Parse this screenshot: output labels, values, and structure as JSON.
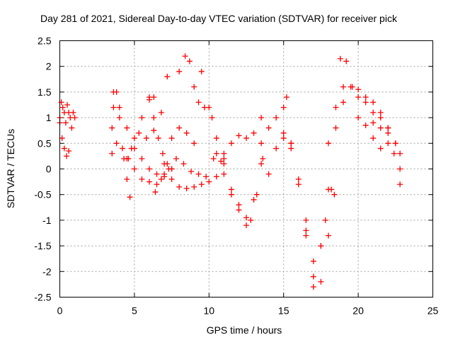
{
  "chart_data": {
    "type": "scatter",
    "title": "Day 281 of 2021, Sidereal Day-to-day VTEC variation (SDTVAR) for receiver pick",
    "xlabel": "GPS time / hours",
    "ylabel": "SDTVAR / TECUs",
    "xlim": [
      0,
      25
    ],
    "ylim": [
      -2.5,
      2.5
    ],
    "xticks": [
      0,
      5,
      10,
      15,
      20,
      25
    ],
    "yticks": [
      -2.5,
      -2,
      -1.5,
      -1,
      -0.5,
      0,
      0.5,
      1,
      1.5,
      2,
      2.5
    ],
    "xtick_labels": [
      "0",
      "5",
      "10",
      "15",
      "20",
      "25"
    ],
    "ytick_labels": [
      "-2.5",
      "-2",
      "-1.5",
      "-1",
      "-0.5",
      "0",
      "0.5",
      "1",
      "1.5",
      "2",
      "2.5"
    ],
    "grid": true,
    "marker": "+",
    "marker_color": "#ff0000",
    "series": [
      {
        "name": "s1",
        "x": [
          0.0,
          0.2,
          0.4,
          0.6,
          0.8,
          1.0
        ],
        "y": [
          1.0,
          1.2,
          0.9,
          1.1,
          0.8,
          1.0
        ]
      },
      {
        "name": "s2",
        "x": [
          0.0,
          0.15,
          0.3,
          0.45,
          0.6
        ],
        "y": [
          0.9,
          0.6,
          0.4,
          0.25,
          0.35
        ]
      },
      {
        "name": "s3",
        "x": [
          0.1,
          0.3,
          0.5,
          0.7,
          0.9
        ],
        "y": [
          1.3,
          1.1,
          1.25,
          1.0,
          1.1
        ]
      },
      {
        "name": "s4",
        "x": [
          3.5,
          3.6,
          3.8,
          4.0,
          4.3,
          4.5,
          4.7
        ],
        "y": [
          0.8,
          1.2,
          1.5,
          1.0,
          0.2,
          -0.2,
          -0.55
        ]
      },
      {
        "name": "s5",
        "x": [
          3.5,
          3.8,
          4.2,
          4.6,
          5.0,
          5.5,
          6.0,
          6.5,
          7.0,
          7.5
        ],
        "y": [
          0.3,
          0.5,
          0.4,
          0.2,
          0.0,
          -0.2,
          -0.25,
          -0.3,
          -0.15,
          0.0
        ]
      },
      {
        "name": "s6",
        "x": [
          3.6,
          4.0,
          4.5,
          5.0,
          5.5,
          6.0,
          6.4
        ],
        "y": [
          1.5,
          1.2,
          0.8,
          0.4,
          0.2,
          0.0,
          -0.45
        ]
      },
      {
        "name": "s7",
        "x": [
          4.5,
          5.0,
          5.5,
          6.0,
          6.3
        ],
        "y": [
          0.2,
          0.6,
          1.0,
          1.35,
          1.4
        ]
      },
      {
        "name": "s8",
        "x": [
          4.8,
          5.3,
          5.8,
          6.3,
          6.8,
          7.2
        ],
        "y": [
          0.4,
          0.7,
          0.6,
          0.75,
          1.1,
          1.8
        ]
      },
      {
        "name": "s9",
        "x": [
          6.0,
          6.3,
          6.6,
          6.9,
          7.2,
          7.5
        ],
        "y": [
          1.4,
          1.0,
          0.6,
          0.3,
          0.1,
          0.0
        ]
      },
      {
        "name": "s10",
        "x": [
          6.5,
          7.0,
          7.5,
          8.0,
          8.5,
          9.0
        ],
        "y": [
          -0.1,
          0.1,
          0.6,
          0.8,
          0.7,
          0.5
        ]
      },
      {
        "name": "s11",
        "x": [
          7.0,
          7.5,
          8.0,
          8.5,
          9.0,
          9.5,
          10.0,
          10.5,
          11.0
        ],
        "y": [
          -0.1,
          -0.2,
          -0.35,
          -0.38,
          -0.35,
          -0.3,
          -0.25,
          -0.15,
          0.1
        ]
      },
      {
        "name": "s12",
        "x": [
          8.0,
          8.4,
          8.7,
          9.0,
          9.3,
          9.7,
          10.2
        ],
        "y": [
          1.9,
          2.2,
          2.1,
          1.6,
          1.3,
          1.2,
          1.0
        ]
      },
      {
        "name": "s13",
        "x": [
          6.8,
          7.3,
          7.8,
          8.3,
          8.8,
          9.3,
          9.8,
          10.3,
          10.8
        ],
        "y": [
          -0.2,
          0.0,
          0.2,
          0.1,
          -0.05,
          -0.1,
          -0.15,
          0.2,
          0.15
        ]
      },
      {
        "name": "s14",
        "x": [
          9.5,
          10.0,
          10.5,
          11.0,
          11.5,
          12.0,
          12.5,
          13.0,
          13.5
        ],
        "y": [
          1.9,
          1.2,
          0.6,
          0.3,
          0.5,
          0.65,
          0.6,
          0.7,
          1.0
        ]
      },
      {
        "name": "s15",
        "x": [
          10.5,
          11.0,
          11.5,
          12.0,
          12.5,
          13.0,
          13.5
        ],
        "y": [
          0.3,
          -0.1,
          -0.5,
          -0.8,
          -1.1,
          -0.6,
          0.1
        ]
      },
      {
        "name": "s16",
        "x": [
          11.0,
          11.5,
          12.0,
          12.5,
          12.8,
          13.2,
          13.6
        ],
        "y": [
          0.2,
          -0.4,
          -0.7,
          -0.95,
          -1.0,
          -0.5,
          0.2
        ]
      },
      {
        "name": "s17",
        "x": [
          13.5,
          14.0,
          14.5,
          15.0,
          15.5
        ],
        "y": [
          0.5,
          0.8,
          1.0,
          0.7,
          0.4
        ]
      },
      {
        "name": "s18",
        "x": [
          14.0,
          14.5,
          15.0,
          15.2,
          15.5
        ],
        "y": [
          -0.1,
          0.4,
          1.2,
          1.4,
          0.5
        ]
      },
      {
        "name": "s19",
        "x": [
          15.0,
          15.5,
          16.0,
          16.5,
          17.0,
          17.5,
          18.0,
          18.5,
          19.0
        ],
        "y": [
          0.6,
          0.5,
          -0.2,
          -1.2,
          -2.3,
          -1.5,
          -0.4,
          0.8,
          1.6
        ]
      },
      {
        "name": "s20",
        "x": [
          16.0,
          16.5,
          17.0,
          17.5,
          18.0,
          18.4
        ],
        "y": [
          -0.3,
          -1.3,
          -2.1,
          -2.2,
          -1.3,
          -0.5
        ]
      },
      {
        "name": "s21",
        "x": [
          16.5,
          17.0,
          17.5,
          17.8,
          18.2
        ],
        "y": [
          -1.0,
          -1.8,
          -1.5,
          -1.0,
          -0.4
        ]
      },
      {
        "name": "s22",
        "x": [
          18.0,
          18.5,
          18.8,
          19.2,
          19.6,
          20.0
        ],
        "y": [
          0.5,
          1.2,
          2.15,
          2.1,
          1.6,
          1.4
        ]
      },
      {
        "name": "s23",
        "x": [
          19.0,
          19.5,
          20.0,
          20.5,
          21.0,
          21.5,
          22.0
        ],
        "y": [
          1.3,
          1.6,
          1.55,
          1.3,
          1.1,
          0.8,
          0.5
        ]
      },
      {
        "name": "s24",
        "x": [
          20.0,
          20.5,
          21.0,
          21.5,
          22.0,
          22.5,
          22.8
        ],
        "y": [
          1.0,
          0.85,
          0.9,
          1.0,
          0.8,
          0.5,
          0.3
        ]
      },
      {
        "name": "s25",
        "x": [
          20.5,
          21.0,
          21.5,
          22.0,
          22.4,
          22.8
        ],
        "y": [
          1.4,
          1.3,
          1.1,
          0.7,
          0.3,
          -0.3
        ]
      },
      {
        "name": "s26",
        "x": [
          21.0,
          21.5,
          22.0,
          22.5,
          22.8
        ],
        "y": [
          0.6,
          0.4,
          0.8,
          0.5,
          0.0
        ]
      }
    ]
  }
}
